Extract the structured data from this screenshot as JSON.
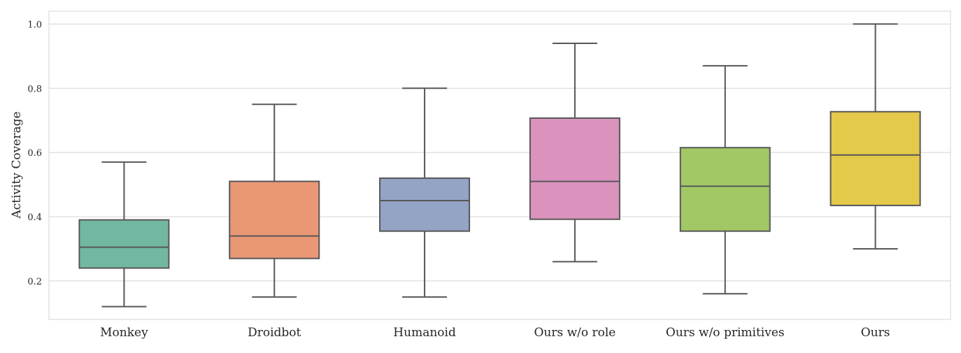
{
  "chart_data": {
    "type": "boxplot",
    "title": "",
    "xlabel": "",
    "ylabel": "Activity Coverage",
    "ylim": [
      0.08,
      1.04
    ],
    "yticks": [
      0.2,
      0.4,
      0.6,
      0.8,
      1.0
    ],
    "ytick_labels": [
      "0.2",
      "0.4",
      "0.6",
      "0.8",
      "1.0"
    ],
    "grid": "horizontal",
    "legend": "none",
    "categories": [
      "Monkey",
      "Droidbot",
      "Humanoid",
      "Ours w/o role",
      "Ours w/o primitives",
      "Ours"
    ],
    "boxes": [
      {
        "category": "Monkey",
        "whisker_low": 0.12,
        "q1": 0.24,
        "median": 0.305,
        "q3": 0.39,
        "whisker_high": 0.57,
        "color": "#72b7a1"
      },
      {
        "category": "Droidbot",
        "whisker_low": 0.15,
        "q1": 0.27,
        "median": 0.34,
        "q3": 0.51,
        "whisker_high": 0.75,
        "color": "#ea9775"
      },
      {
        "category": "Humanoid",
        "whisker_low": 0.15,
        "q1": 0.355,
        "median": 0.45,
        "q3": 0.52,
        "whisker_high": 0.8,
        "color": "#94a4c5"
      },
      {
        "category": "Ours w/o role",
        "whisker_low": 0.26,
        "q1": 0.392,
        "median": 0.51,
        "q3": 0.707,
        "whisker_high": 0.94,
        "color": "#db93be"
      },
      {
        "category": "Ours w/o primitives",
        "whisker_low": 0.16,
        "q1": 0.355,
        "median": 0.495,
        "q3": 0.615,
        "whisker_high": 0.87,
        "color": "#a2c866"
      },
      {
        "category": "Ours",
        "whisker_low": 0.3,
        "q1": 0.435,
        "median": 0.592,
        "q3": 0.727,
        "whisker_high": 1.0,
        "color": "#e4c94a"
      }
    ],
    "style_colors": {
      "box_edge": "#575757",
      "grid": "#d4d4d4",
      "frame": "#d4d4d4",
      "text": "#262626"
    }
  }
}
